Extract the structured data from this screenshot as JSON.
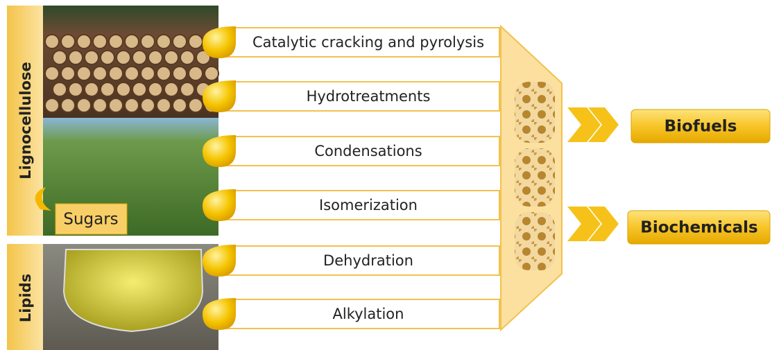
{
  "sources": [
    {
      "label": "Lignocellulose"
    },
    {
      "label": "Lipids"
    }
  ],
  "intermediate": "Sugars",
  "processes": [
    "Catalytic cracking and pyrolysis",
    "Hydrotreatments",
    "Condensations",
    "Isomerization",
    "Dehydration",
    "Alkylation"
  ],
  "products": [
    "Biofuels",
    "Biochemicals"
  ]
}
